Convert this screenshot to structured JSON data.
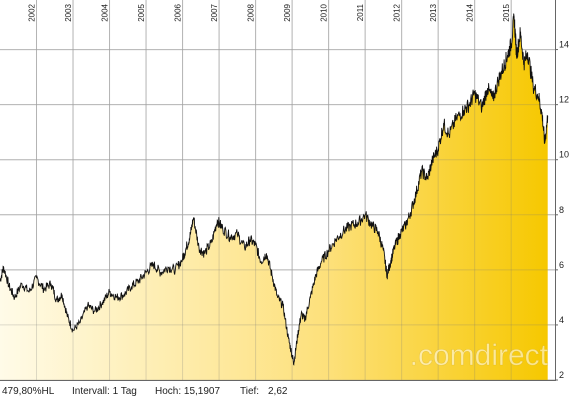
{
  "chart_data": {
    "type": "area",
    "title": "",
    "x_ticks": [
      "2002",
      "2003",
      "2004",
      "2005",
      "2006",
      "2007",
      "2008",
      "2009",
      "2010",
      "2011",
      "2012",
      "2013",
      "2014",
      "2015"
    ],
    "y_ticks": [
      2,
      4,
      6,
      8,
      10,
      12,
      14
    ],
    "ylim": [
      2,
      15.8
    ],
    "xlim": [
      2001.0,
      2016.2
    ],
    "grid": true,
    "colors": {
      "fill_start": "#fffbe6",
      "fill_end": "#f5c400",
      "line": "#111111",
      "grid": "#c8c8c8"
    },
    "series": [
      {
        "x": [
          2001.0,
          2001.1,
          2001.25,
          2001.4,
          2001.6,
          2001.8,
          2002.0,
          2002.2,
          2002.4,
          2002.55,
          2002.7,
          2002.85,
          2003.0,
          2003.2,
          2003.4,
          2003.6,
          2003.8,
          2004.0,
          2004.2,
          2004.4,
          2004.6,
          2004.8,
          2005.0,
          2005.2,
          2005.4,
          2005.6,
          2005.8,
          2006.0,
          2006.1,
          2006.2,
          2006.3,
          2006.45,
          2006.6,
          2006.8,
          2006.95,
          2007.1,
          2007.3,
          2007.5,
          2007.7,
          2007.85,
          2008.0,
          2008.15,
          2008.3,
          2008.45,
          2008.6,
          2008.75,
          2008.9,
          2009.0,
          2009.05,
          2009.15,
          2009.25,
          2009.35,
          2009.5,
          2009.65,
          2009.8,
          2010.0,
          2010.2,
          2010.4,
          2010.6,
          2010.8,
          2011.0,
          2011.2,
          2011.35,
          2011.5,
          2011.6,
          2011.7,
          2011.8,
          2011.95,
          2012.1,
          2012.25,
          2012.4,
          2012.55,
          2012.7,
          2012.85,
          2013.0,
          2013.15,
          2013.3,
          2013.5,
          2013.7,
          2013.85,
          2014.0,
          2014.2,
          2014.35,
          2014.5,
          2014.65,
          2014.8,
          2014.9,
          2015.0,
          2015.08,
          2015.15,
          2015.25,
          2015.35,
          2015.45,
          2015.6,
          2015.75,
          2015.85,
          2015.92,
          2016.0
        ],
        "y": [
          5.6,
          6.1,
          5.4,
          5.0,
          5.5,
          5.2,
          5.7,
          5.3,
          5.5,
          4.9,
          5.1,
          4.3,
          3.8,
          4.1,
          4.7,
          4.5,
          4.8,
          5.2,
          5.0,
          5.1,
          5.4,
          5.6,
          5.9,
          6.2,
          5.9,
          6.1,
          6.0,
          6.4,
          6.8,
          7.2,
          7.9,
          6.8,
          6.6,
          7.0,
          7.8,
          7.5,
          7.2,
          7.3,
          6.8,
          7.1,
          6.9,
          6.3,
          6.6,
          5.8,
          5.0,
          4.7,
          3.5,
          2.9,
          2.62,
          3.6,
          4.4,
          4.2,
          5.0,
          5.8,
          6.3,
          6.7,
          7.1,
          7.4,
          7.6,
          7.7,
          8.0,
          7.6,
          7.4,
          6.7,
          5.8,
          6.3,
          6.8,
          7.3,
          7.6,
          8.1,
          8.8,
          9.6,
          9.3,
          10.0,
          10.4,
          11.3,
          10.9,
          11.5,
          11.8,
          12.0,
          12.4,
          11.9,
          12.6,
          12.2,
          12.9,
          13.4,
          13.8,
          14.2,
          15.19,
          13.8,
          14.6,
          13.5,
          13.9,
          12.7,
          12.3,
          11.6,
          10.6,
          11.6
        ]
      }
    ]
  },
  "footer": {
    "change": "479,80%HL",
    "interval": "Intervall: 1 Tag",
    "high": "Hoch: 15,1907",
    "low_label": "Tief:",
    "low_value": "2,62"
  },
  "watermark": ".comdirect"
}
